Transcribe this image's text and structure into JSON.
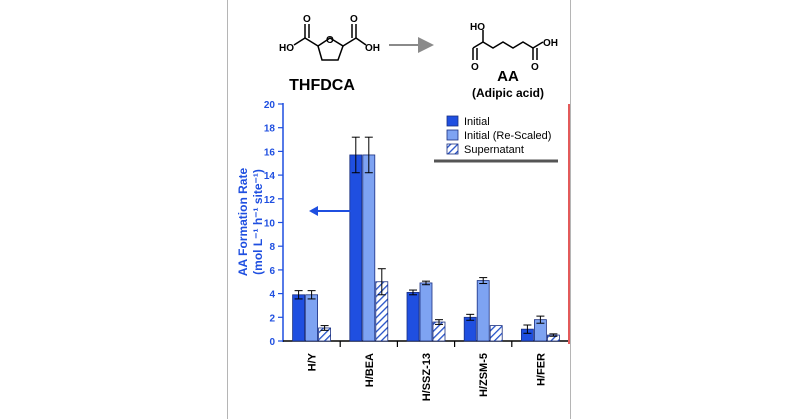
{
  "scheme": {
    "reactant_label": "THFDCA",
    "product_label": "AA",
    "product_name": "(Adipic acid)",
    "reactant_atoms": {
      "ho": "HO",
      "o_ring": "O",
      "o1": "O",
      "o2": "O",
      "oh": "OH"
    },
    "product_atoms": {
      "ho": "HO",
      "o1": "O",
      "o2": "O",
      "oh": "OH"
    }
  },
  "chart_data": {
    "type": "bar",
    "categories": [
      "H/Y",
      "H/BEA",
      "H/SSZ-13",
      "H/ZSM-5",
      "H/FER"
    ],
    "series": [
      {
        "name": "Initial",
        "values": [
          3.9,
          15.7,
          4.1,
          2.0,
          1.0
        ],
        "errors": [
          0.35,
          1.5,
          0.2,
          0.25,
          0.35
        ],
        "color": "#1f4fe0",
        "pattern": "solid"
      },
      {
        "name": "Initial (Re-Scaled)",
        "values": [
          3.9,
          15.7,
          4.9,
          5.1,
          1.8
        ],
        "errors": [
          0.35,
          1.5,
          0.15,
          0.25,
          0.3
        ],
        "color": "#7ea3f2",
        "pattern": "solid"
      },
      {
        "name": "Supernatant",
        "values": [
          1.1,
          5.0,
          1.6,
          1.3,
          0.5
        ],
        "errors": [
          0.2,
          1.1,
          0.2,
          0.0,
          0.1
        ],
        "color": "#2350c8",
        "pattern": "hatch"
      }
    ],
    "ylabel_line1": "AA Formation Rate",
    "ylabel_line2": "(mol L⁻¹ h⁻¹ site⁻¹)",
    "ylim": [
      0,
      20
    ],
    "yticks": [
      "0",
      "2",
      "4",
      "6",
      "8",
      "10",
      "12",
      "14",
      "16",
      "18",
      "20"
    ],
    "legend_position": "top-right",
    "axis_color": "#1f4fe0"
  }
}
